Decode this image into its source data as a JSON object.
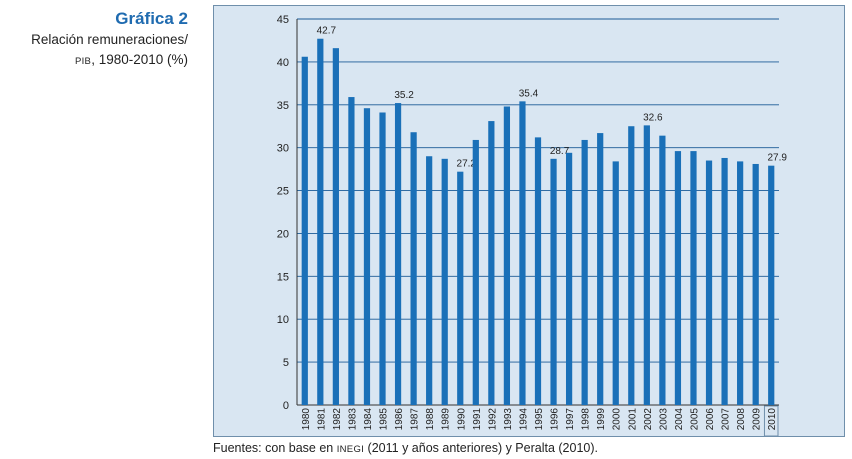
{
  "heading": {
    "title": "Gráfica 2",
    "subtitle_line1": "Relación remuneraciones/",
    "subtitle_line2_abbrev": "PIB",
    "subtitle_line2_rest": ", 1980-2010 (%)"
  },
  "source": {
    "prefix": "Fuentes: con base en ",
    "abbrev": "INEGI",
    "suffix": " (2011 y años anteriores) y Peralta (2010)."
  },
  "colors": {
    "bar": "#1a70b8",
    "plot_background": "#d9e6f2",
    "gridline": "#1a5a96",
    "heading": "#1f6bb0"
  },
  "chart_data": {
    "type": "bar",
    "title": "",
    "xlabel": "",
    "ylabel": "",
    "ylim": [
      0,
      45
    ],
    "yticks": [
      0,
      5,
      10,
      15,
      20,
      25,
      30,
      35,
      40,
      45
    ],
    "grid": true,
    "categories": [
      "1980",
      "1981",
      "1982",
      "1983",
      "1984",
      "1985",
      "1986",
      "1987",
      "1988",
      "1989",
      "1990",
      "1991",
      "1992",
      "1993",
      "1994",
      "1995",
      "1996",
      "1997",
      "1998",
      "1999",
      "2000",
      "2001",
      "2002",
      "2003",
      "2004",
      "2005",
      "2006",
      "2007",
      "2008",
      "2009",
      "2010"
    ],
    "values": [
      40.6,
      42.7,
      41.6,
      35.9,
      34.6,
      34.1,
      35.2,
      31.8,
      29.0,
      28.7,
      27.2,
      30.9,
      33.1,
      34.8,
      35.4,
      31.2,
      28.7,
      29.4,
      30.9,
      31.7,
      28.4,
      32.5,
      32.6,
      31.4,
      29.6,
      29.6,
      28.5,
      28.8,
      28.4,
      28.1,
      27.9
    ],
    "data_labels": [
      {
        "category": "1981",
        "label": "42.7"
      },
      {
        "category": "1986",
        "label": "35.2"
      },
      {
        "category": "1990",
        "label": "27.2"
      },
      {
        "category": "1994",
        "label": "35.4"
      },
      {
        "category": "1996",
        "label": "28.7"
      },
      {
        "category": "2002",
        "label": "32.6"
      },
      {
        "category": "2010",
        "label": "27.9"
      }
    ],
    "highlighted_category": "2010"
  }
}
